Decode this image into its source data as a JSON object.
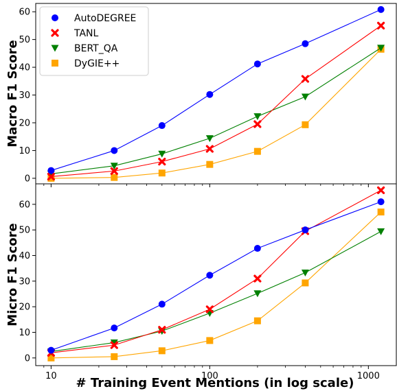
{
  "chart_data": {
    "type": "line",
    "xscale": "log",
    "xlabel": "# Training Event Mentions (in log scale)",
    "xlim": [
      8,
      1500
    ],
    "xticks": [
      10,
      100,
      1000
    ],
    "xtick_labels": [
      "10",
      "100",
      "1000"
    ],
    "x": [
      10,
      25,
      50,
      100,
      200,
      400,
      1200
    ],
    "grid": false,
    "legend_position": "upper-left (top panel)",
    "series_styles": [
      {
        "name": "AutoDEGREE",
        "color": "#0000ff",
        "marker": "circle"
      },
      {
        "name": "TANL",
        "color": "#ff0000",
        "marker": "x"
      },
      {
        "name": "BERT_QA",
        "color": "#008000",
        "marker": "triangle-down"
      },
      {
        "name": "DyGIE++",
        "color": "#ffa500",
        "marker": "square"
      }
    ],
    "panels": [
      {
        "ylabel": "Macro F1 Score",
        "ylim": [
          -2,
          63
        ],
        "yticks": [
          0,
          10,
          20,
          30,
          40,
          50,
          60
        ],
        "ytick_labels": [
          "0",
          "10",
          "20",
          "30",
          "40",
          "50",
          "60"
        ],
        "series": [
          {
            "name": "AutoDEGREE",
            "values": [
              2.8,
              10.0,
              19.0,
              30.2,
              41.2,
              48.5,
              60.8
            ]
          },
          {
            "name": "TANL",
            "values": [
              0.6,
              2.6,
              6.0,
              10.6,
              19.5,
              35.8,
              55.0
            ]
          },
          {
            "name": "BERT_QA",
            "values": [
              1.6,
              4.5,
              8.8,
              14.4,
              22.3,
              29.4,
              47.0
            ]
          },
          {
            "name": "DyGIE++",
            "values": [
              0.0,
              0.3,
              1.9,
              5.0,
              9.7,
              19.3,
              46.5
            ]
          }
        ]
      },
      {
        "ylabel": "Micro F1 Score",
        "ylim": [
          -3,
          68
        ],
        "yticks": [
          0,
          10,
          20,
          30,
          40,
          50,
          60
        ],
        "ytick_labels": [
          "0",
          "10",
          "20",
          "30",
          "40",
          "50",
          "60"
        ],
        "series": [
          {
            "name": "AutoDEGREE",
            "values": [
              3.0,
              11.7,
              21.0,
              32.3,
              42.8,
              50.0,
              61.0
            ]
          },
          {
            "name": "TANL",
            "values": [
              2.0,
              5.0,
              11.0,
              19.0,
              31.0,
              49.5,
              65.5
            ]
          },
          {
            "name": "BERT_QA",
            "values": [
              2.5,
              6.0,
              10.5,
              17.5,
              25.2,
              33.3,
              49.4
            ]
          },
          {
            "name": "DyGIE++",
            "values": [
              0.0,
              0.5,
              2.8,
              6.8,
              14.5,
              29.3,
              57.0
            ]
          }
        ]
      }
    ]
  }
}
